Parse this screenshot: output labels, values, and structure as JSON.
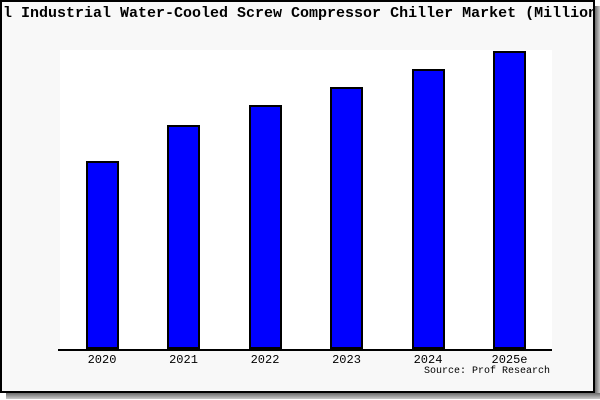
{
  "chart_data": {
    "type": "bar",
    "title": "l Industrial Water-Cooled Screw Compressor Chiller Market (Million",
    "categories": [
      "2020",
      "2021",
      "2022",
      "2023",
      "2024",
      "2025e"
    ],
    "values": [
      63,
      75,
      82,
      88,
      94,
      100
    ],
    "xlabel": "",
    "ylabel": "",
    "ylim": [
      0,
      101
    ],
    "grid": false,
    "legend": false,
    "y_axis_visible": false,
    "source": "Source: Prof Research",
    "colors": {
      "bar": "#0000FF",
      "bar_edge": "#000000",
      "axis": "#000000",
      "text": "#000000",
      "plot_bg": "#FFFFFF",
      "figure_bg": "#F8F8F8"
    }
  }
}
